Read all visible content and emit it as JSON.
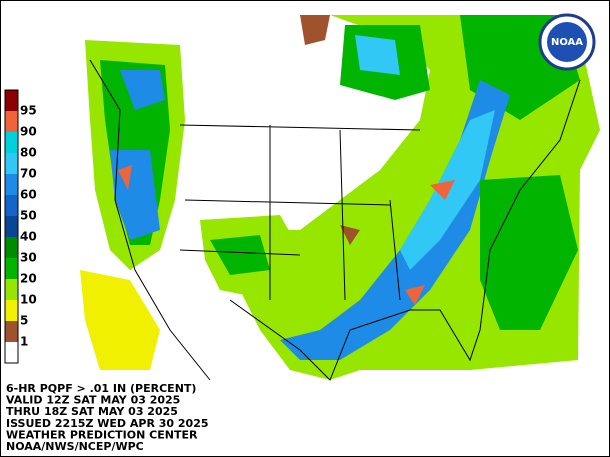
{
  "logo": "NOAA",
  "legend": {
    "items": [
      {
        "label": "95",
        "color": "#8b0000"
      },
      {
        "label": "90",
        "color": "#f0643c"
      },
      {
        "label": "80",
        "color": "#00d2dc"
      },
      {
        "label": "70",
        "color": "#32c8f5"
      },
      {
        "label": "60",
        "color": "#1e8ce6"
      },
      {
        "label": "50",
        "color": "#1464c8"
      },
      {
        "label": "40",
        "color": "#0a4696"
      },
      {
        "label": "30",
        "color": "#008c00"
      },
      {
        "label": "20",
        "color": "#00b400"
      },
      {
        "label": "10",
        "color": "#96e600"
      },
      {
        "label": "5",
        "color": "#f0f000"
      },
      {
        "label": "1",
        "color": "#a0522d"
      }
    ],
    "empty_color": "#ffffff"
  },
  "caption": [
    "6-HR PQPF > .01 IN (PERCENT)",
    "VALID 12Z SAT MAY 03 2025",
    "THRU 18Z SAT MAY 03 2025",
    "ISSUED 2215Z WED APR 30 2025",
    "WEATHER PREDICTION CENTER",
    "NOAA/NWS/NCEP/WPC"
  ]
}
